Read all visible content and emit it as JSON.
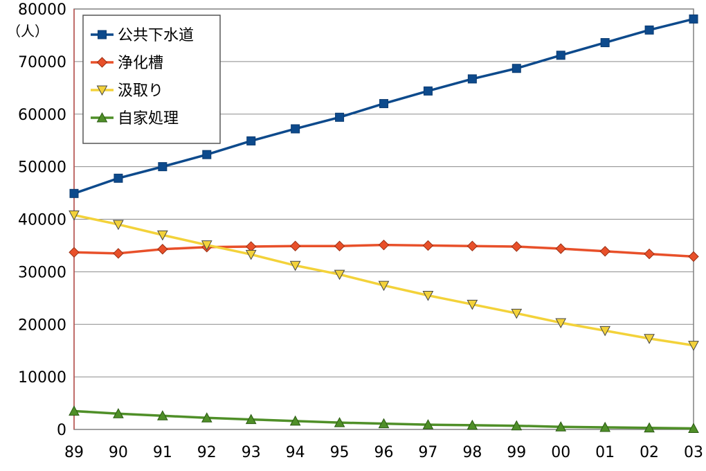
{
  "chart_data": {
    "type": "line",
    "ylabel": "（人）",
    "ylim": [
      0,
      80000
    ],
    "yticks": [
      0,
      10000,
      20000,
      30000,
      40000,
      50000,
      60000,
      70000,
      80000
    ],
    "categories": [
      "89",
      "90",
      "91",
      "92",
      "93",
      "94",
      "95",
      "96",
      "97",
      "98",
      "99",
      "00",
      "01",
      "02",
      "03"
    ],
    "grid": true,
    "legend_position": "top-left",
    "series": [
      {
        "name": "公共下水道",
        "color": "#0d4a8c",
        "marker": "square",
        "values": [
          44900,
          47800,
          50000,
          52300,
          54900,
          57200,
          59400,
          62000,
          64400,
          66700,
          68700,
          71200,
          73600,
          76000,
          78100
        ]
      },
      {
        "name": "浄化槽",
        "color": "#e8502a",
        "marker": "diamond",
        "values": [
          33700,
          33500,
          34300,
          34700,
          34800,
          34900,
          34900,
          35100,
          35000,
          34900,
          34800,
          34400,
          33900,
          33400,
          32900
        ]
      },
      {
        "name": "汲取り",
        "color": "#f3d23a",
        "marker": "triangle-down",
        "values": [
          40800,
          39000,
          37000,
          35100,
          33300,
          31200,
          29500,
          27400,
          25500,
          23800,
          22100,
          20300,
          18800,
          17300,
          16000
        ]
      },
      {
        "name": "自家処理",
        "color": "#4f8f28",
        "marker": "triangle-up",
        "values": [
          3500,
          3000,
          2600,
          2200,
          1900,
          1600,
          1300,
          1100,
          900,
          800,
          700,
          500,
          400,
          300,
          200
        ]
      }
    ]
  }
}
